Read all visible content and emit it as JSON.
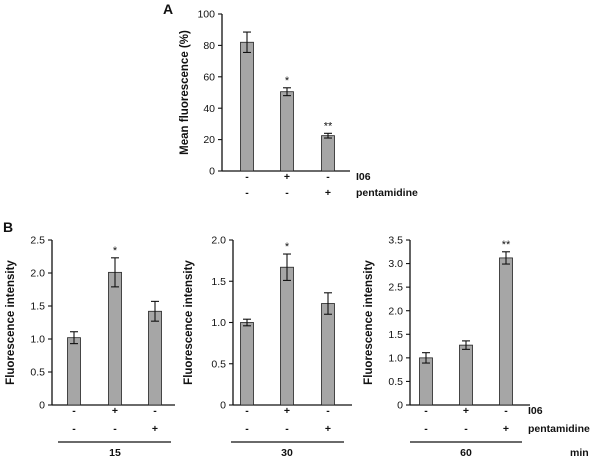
{
  "chart_data": [
    {
      "type": "bar",
      "panel": "A",
      "ylabel": "Mean fluorescence (%)",
      "ylim": [
        0,
        100
      ],
      "yticks": [
        "0",
        "20",
        "40",
        "60",
        "80",
        "100"
      ],
      "values": [
        82,
        50.5,
        22.5
      ],
      "errors": [
        6.5,
        2.5,
        1.5
      ],
      "annotations": [
        "",
        "*",
        "**"
      ],
      "conditions": [
        {
          "name": "I06",
          "signs": [
            "-",
            "+",
            "-"
          ]
        },
        {
          "name": "pentamidine",
          "signs": [
            "-",
            "-",
            "+"
          ]
        }
      ]
    },
    {
      "type": "bar",
      "panel": "B",
      "ylabel": "Fluorescence intensity",
      "ylim": [
        0,
        2.5
      ],
      "yticks": [
        "0",
        "0.5",
        "1.0",
        "1.5",
        "2.0",
        "2.5"
      ],
      "values": [
        1.02,
        2.01,
        1.42
      ],
      "errors": [
        0.09,
        0.22,
        0.15
      ],
      "annotations": [
        "",
        "*",
        ""
      ],
      "conditions": [
        {
          "name": "",
          "signs": [
            "-",
            "+",
            "-"
          ]
        },
        {
          "name": "",
          "signs": [
            "-",
            "-",
            "+"
          ]
        }
      ],
      "time": "15"
    },
    {
      "type": "bar",
      "ylabel": "Fluorescence intensity",
      "ylim": [
        0,
        2.0
      ],
      "yticks": [
        "0",
        "0.5",
        "1.0",
        "1.5",
        "2.0"
      ],
      "values": [
        1.0,
        1.67,
        1.23
      ],
      "errors": [
        0.04,
        0.16,
        0.13
      ],
      "annotations": [
        "",
        "*",
        ""
      ],
      "conditions": [
        {
          "name": "",
          "signs": [
            "-",
            "+",
            "-"
          ]
        },
        {
          "name": "",
          "signs": [
            "-",
            "-",
            "+"
          ]
        }
      ],
      "time": "30"
    },
    {
      "type": "bar",
      "ylabel": "Fluorescence intensity",
      "ylim": [
        0,
        3.5
      ],
      "yticks": [
        "0",
        "0.5",
        "1.0",
        "1.5",
        "2.0",
        "2.5",
        "3.0",
        "3.5"
      ],
      "values": [
        1.0,
        1.27,
        3.12
      ],
      "errors": [
        0.11,
        0.09,
        0.13
      ],
      "annotations": [
        "",
        "",
        "**"
      ],
      "conditions": [
        {
          "name": "I06",
          "signs": [
            "-",
            "+",
            "-"
          ]
        },
        {
          "name": "pentamidine",
          "signs": [
            "-",
            "-",
            "+"
          ]
        }
      ],
      "time": "60",
      "time_unit": "min"
    }
  ]
}
